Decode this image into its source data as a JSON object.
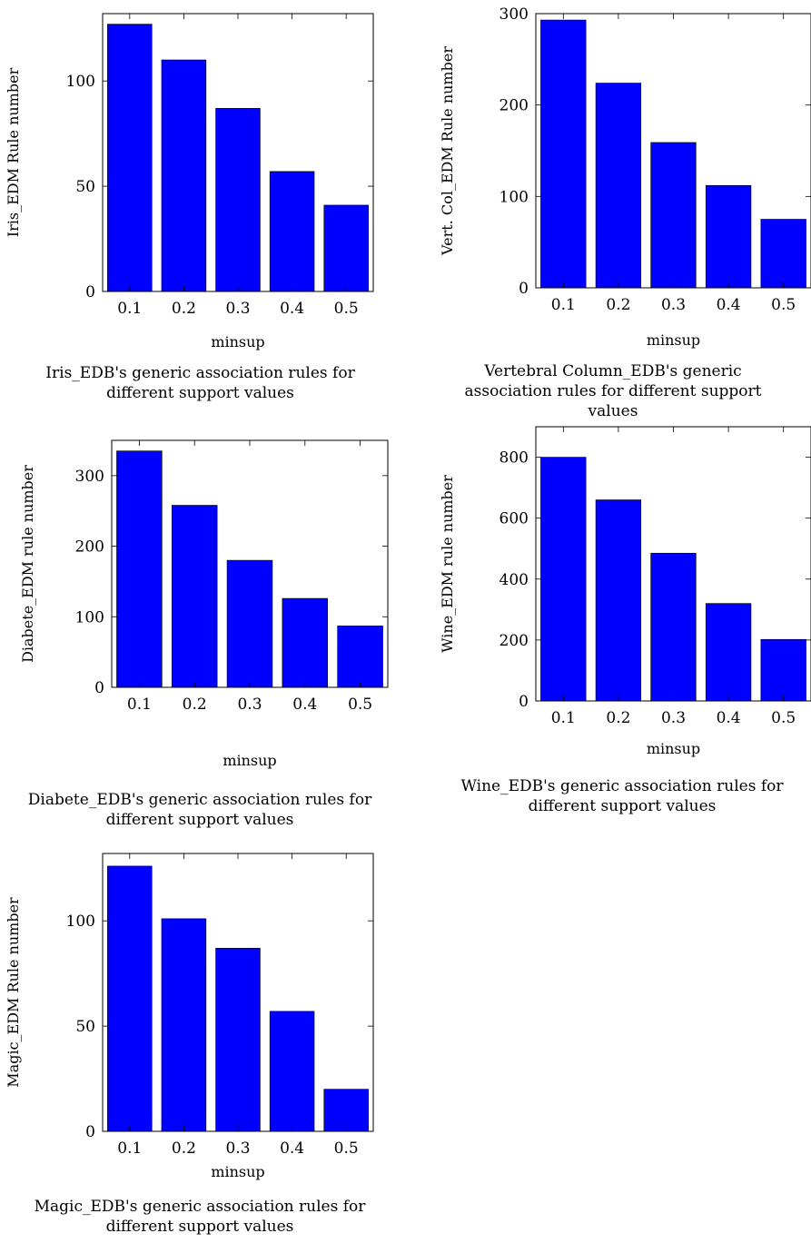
{
  "colors": {
    "bar_fill": "#0000ff",
    "bar_stroke": "#000000",
    "axis": "#000000"
  },
  "chart_data": [
    {
      "type": "bar",
      "categories": [
        "0.1",
        "0.2",
        "0.3",
        "0.4",
        "0.5"
      ],
      "values": [
        127,
        110,
        87,
        57,
        41
      ],
      "xlabel": "minsup",
      "ylabel": "Iris_EDM Rule number",
      "yticks": [
        0,
        50,
        100
      ],
      "ylim": [
        0,
        132
      ],
      "caption": "Iris_EDB's generic association rules for different support values",
      "grid": false
    },
    {
      "type": "bar",
      "categories": [
        "0.1",
        "0.2",
        "0.3",
        "0.4",
        "0.5"
      ],
      "values": [
        293,
        224,
        159,
        112,
        75
      ],
      "xlabel": "minsup",
      "ylabel": "Vert. Col_EDM Rule number",
      "yticks": [
        0,
        100,
        200,
        300
      ],
      "ylim": [
        0,
        300
      ],
      "caption": "Vertebral Column_EDB's generic association rules for different support values",
      "grid": false
    },
    {
      "type": "bar",
      "categories": [
        "0.1",
        "0.2",
        "0.3",
        "0.4",
        "0.5"
      ],
      "values": [
        335,
        258,
        180,
        126,
        87
      ],
      "xlabel": "minsup",
      "ylabel": "Diabete_EDM rule number",
      "yticks": [
        0,
        100,
        200,
        300
      ],
      "ylim": [
        0,
        350
      ],
      "caption": "Diabete_EDB's generic association rules for different support values",
      "grid": false
    },
    {
      "type": "bar",
      "categories": [
        "0.1",
        "0.2",
        "0.3",
        "0.4",
        "0.5"
      ],
      "values": [
        800,
        660,
        485,
        320,
        202
      ],
      "xlabel": "minsup",
      "ylabel": "Wine_EDM rule number",
      "yticks": [
        0,
        200,
        400,
        600,
        800
      ],
      "ylim": [
        0,
        900
      ],
      "caption": "Wine_EDB's generic association rules for different support values",
      "grid": false
    },
    {
      "type": "bar",
      "categories": [
        "0.1",
        "0.2",
        "0.3",
        "0.4",
        "0.5"
      ],
      "values": [
        126,
        101,
        87,
        57,
        20
      ],
      "xlabel": "minsup",
      "ylabel": "Magic_EDM Rule number",
      "yticks": [
        0,
        50,
        100
      ],
      "ylim": [
        0,
        132
      ],
      "caption": "Magic_EDB's generic association rules for different support values",
      "grid": false
    }
  ]
}
